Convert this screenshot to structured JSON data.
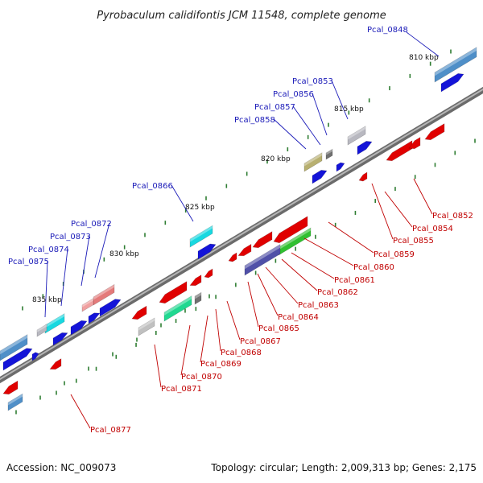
{
  "title": "Pyrobaculum calidifontis JCM 11548, complete genome",
  "footer": {
    "accession": "Accession: NC_009073",
    "summary": "Topology: circular; Length: 2,009,313 bp; Genes: 2,175"
  },
  "colors": {
    "forward_label": "#1a1ab8",
    "reverse_label": "#c00000",
    "tick": "#2e7d32",
    "backbone": "#8c8c8c"
  },
  "scale_labels": [
    "810 kbp",
    "815 kbp",
    "820 kbp",
    "825 kbp",
    "830 kbp",
    "835 kbp"
  ],
  "forward_gene_labels": [
    "Pcal_0848",
    "Pcal_0853",
    "Pcal_0856",
    "Pcal_0857",
    "Pcal_0858",
    "Pcal_0866",
    "Pcal_0872",
    "Pcal_0873",
    "Pcal_0874",
    "Pcal_0875"
  ],
  "reverse_gene_labels": [
    "Pcal_0852",
    "Pcal_0854",
    "Pcal_0855",
    "Pcal_0859",
    "Pcal_0860",
    "Pcal_0861",
    "Pcal_0862",
    "Pcal_0863",
    "Pcal_0864",
    "Pcal_0865",
    "Pcal_0867",
    "Pcal_0868",
    "Pcal_0869",
    "Pcal_0870",
    "Pcal_0871",
    "Pcal_0877"
  ]
}
